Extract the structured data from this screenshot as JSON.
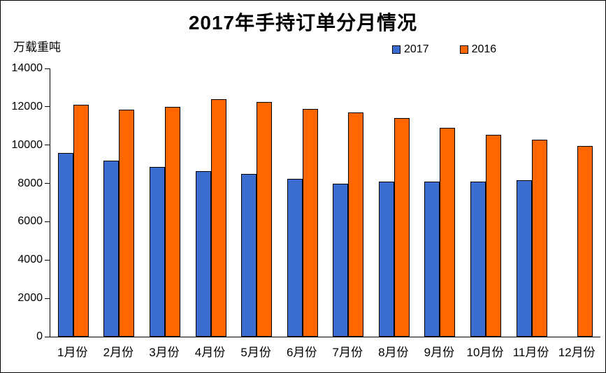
{
  "title": "2017年手持订单分月情况",
  "unit_label": "万载重吨",
  "legend": [
    {
      "label": "2017",
      "color": "#3B6CD0"
    },
    {
      "label": "2016",
      "color": "#FF6600"
    }
  ],
  "chart_data": {
    "type": "bar",
    "title": "2017年手持订单分月情况",
    "ylabel": "万载重吨",
    "categories": [
      "1月份",
      "2月份",
      "3月份",
      "4月份",
      "5月份",
      "6月份",
      "7月份",
      "8月份",
      "9月份",
      "10月份",
      "11月份",
      "12月份"
    ],
    "series": [
      {
        "name": "2017",
        "color": "#3B6CD0",
        "values": [
          9600,
          9200,
          8850,
          8650,
          8500,
          8250,
          8000,
          8100,
          8100,
          8100,
          8150,
          null
        ]
      },
      {
        "name": "2016",
        "color": "#FF6600",
        "values": [
          12100,
          11850,
          12000,
          12400,
          12250,
          11900,
          11700,
          11400,
          10900,
          10550,
          10300,
          9950
        ]
      }
    ],
    "ylim": [
      0,
      14000
    ],
    "yticks": [
      0,
      2000,
      4000,
      6000,
      8000,
      10000,
      12000,
      14000
    ],
    "grid": false,
    "legend_position": "top"
  }
}
